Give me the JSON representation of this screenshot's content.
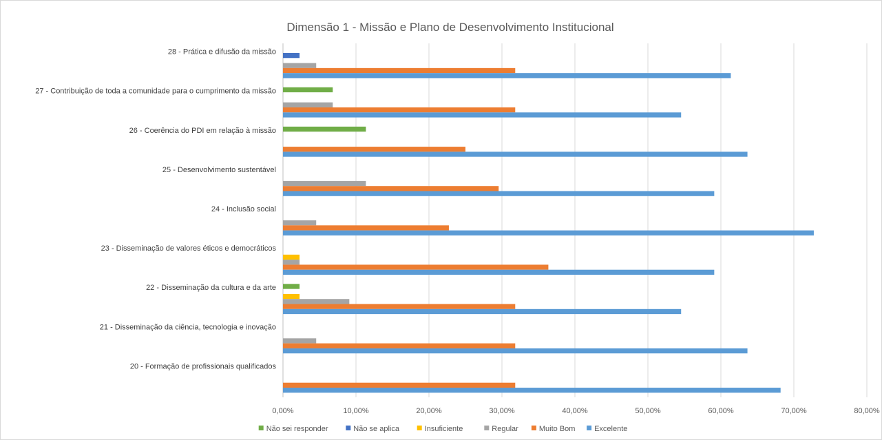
{
  "chart_data": {
    "type": "bar",
    "orientation": "horizontal",
    "title": "Dimensão 1 - Missão e Plano de Desenvolvimento Institucional",
    "categories": [
      "20 - Formação de profissionais qualificados",
      "21 - Disseminação da ciência, tecnologia e inovação",
      "22 - Disseminação da cultura e da arte",
      "23 - Disseminação de valores éticos e democráticos",
      "24 - Inclusão social",
      "25 - Desenvolvimento sustentável",
      "26 - Coerência do PDI em relação à missão",
      "27 - Contribuição de toda a comunidade para o cumprimento da missão",
      "28 - Prática e difusão da missão"
    ],
    "series": [
      {
        "name": "Não sei responder",
        "color": "#70ad47",
        "values": [
          0,
          0,
          2.27,
          0,
          0,
          0,
          11.36,
          6.82,
          0
        ]
      },
      {
        "name": "Não se aplica",
        "color": "#4472c4",
        "values": [
          0,
          0,
          0,
          0,
          0,
          0,
          0,
          0,
          2.27
        ]
      },
      {
        "name": "Insuficiente",
        "color": "#ffc000",
        "values": [
          0,
          0,
          2.27,
          2.27,
          0,
          0,
          0,
          0,
          0
        ]
      },
      {
        "name": "Regular",
        "color": "#a5a5a5",
        "values": [
          0,
          4.55,
          9.09,
          2.27,
          4.55,
          11.36,
          0,
          6.82,
          4.55
        ]
      },
      {
        "name": "Muito Bom",
        "color": "#ed7d31",
        "values": [
          31.82,
          31.82,
          31.82,
          36.36,
          22.73,
          29.55,
          25.0,
          31.82,
          31.82
        ]
      },
      {
        "name": "Excelente",
        "color": "#5b9bd5",
        "values": [
          68.18,
          63.64,
          54.55,
          59.09,
          72.73,
          59.09,
          63.64,
          54.55,
          61.36
        ]
      }
    ],
    "xlim": [
      0,
      80
    ],
    "x_ticks": [
      "0,00%",
      "10,00%",
      "20,00%",
      "30,00%",
      "40,00%",
      "50,00%",
      "60,00%",
      "70,00%",
      "80,00%"
    ],
    "grid": true,
    "legend_position": "bottom"
  }
}
